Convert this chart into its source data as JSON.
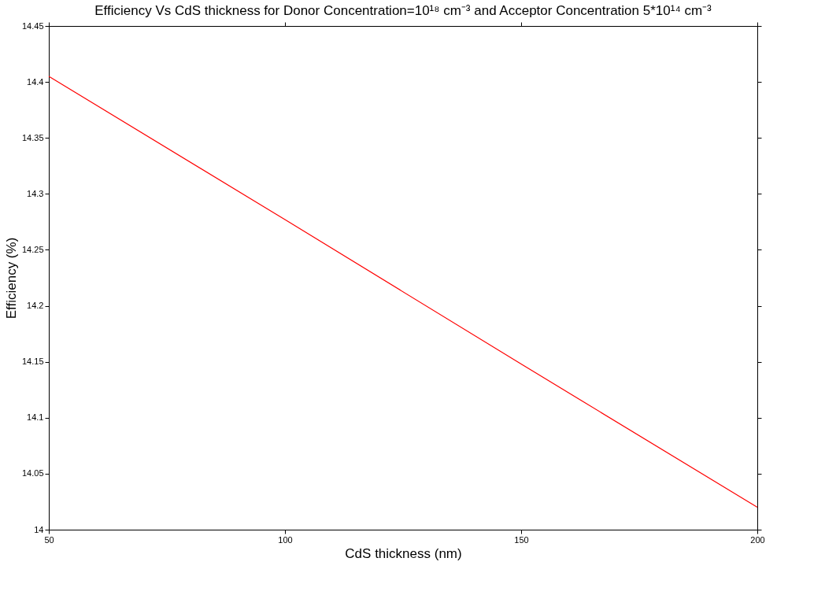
{
  "chart_data": {
    "type": "line",
    "title": "Efficiency Vs CdS thickness for Donor Concentration=10¹⁸ cm⁻³ and Acceptor Concentration 5*10¹⁴ cm⁻³",
    "xlabel": "CdS thickness (nm)",
    "ylabel": "Efficiency (%)",
    "x": [
      50,
      100,
      150,
      200
    ],
    "series": [
      {
        "color": "#ff0000",
        "values": [
          14.405,
          14.277,
          14.148,
          14.02
        ]
      }
    ],
    "xlim": [
      50,
      200
    ],
    "xticks": [
      50,
      100,
      150,
      200
    ],
    "ylim": [
      14,
      14.45
    ],
    "yticks": [
      14,
      14.05,
      14.1,
      14.15,
      14.2,
      14.25,
      14.3,
      14.35,
      14.4,
      14.45
    ],
    "grid": false,
    "legend": false,
    "marker": "none",
    "line_style": "solid"
  }
}
